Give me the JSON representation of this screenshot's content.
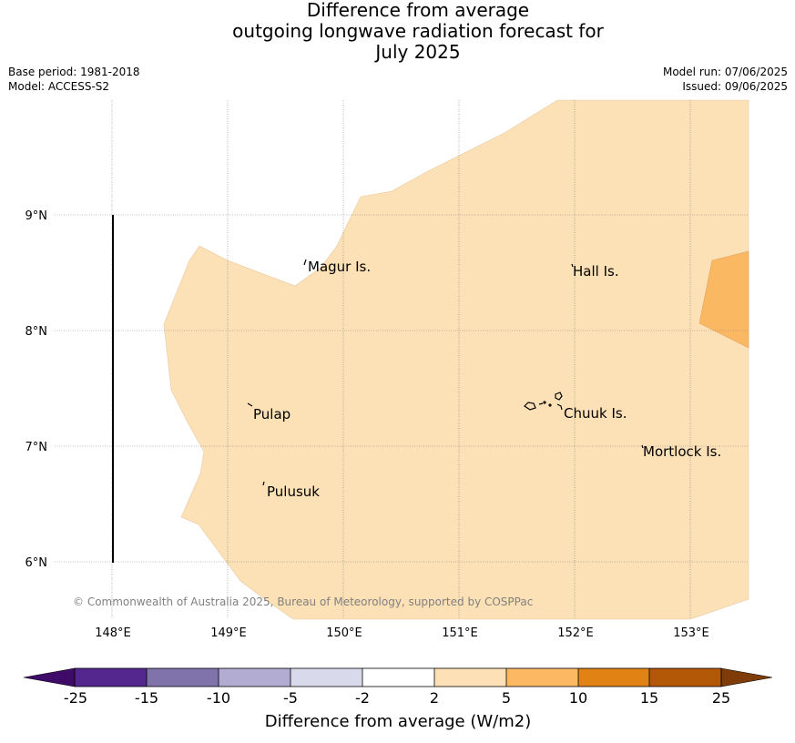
{
  "title": {
    "line1": "Difference from average",
    "line2": "outgoing longwave radiation forecast for",
    "line3": "July 2025"
  },
  "meta": {
    "base_period": "Base period: 1981-2018",
    "model": "Model: ACCESS-S2",
    "model_run": "Model run: 07/06/2025",
    "issued": "Issued: 09/06/2025"
  },
  "map": {
    "lat_ticks": [
      "9°N",
      "8°N",
      "7°N",
      "6°N"
    ],
    "lon_ticks": [
      "148°E",
      "149°E",
      "150°E",
      "151°E",
      "152°E",
      "153°E"
    ],
    "places": [
      {
        "name": "Magur Is."
      },
      {
        "name": "Hall Is."
      },
      {
        "name": "Pulap"
      },
      {
        "name": "Chuuk Is."
      },
      {
        "name": "Mortlock Is."
      },
      {
        "name": "Pulusuk"
      }
    ],
    "copyright": "© Commonwealth of Australia 2025, Bureau of Meteorology, supported by COSPPac",
    "shading_colors": {
      "2 to 5": "#fce0b6",
      "5 to 10": "#fbb863"
    }
  },
  "colorbar": {
    "title": "Difference from average (W/m2)",
    "ticks": [
      "-25",
      "-15",
      "-10",
      "-5",
      "-2",
      "2",
      "5",
      "10",
      "15",
      "25"
    ],
    "colors": [
      "#3e0b69",
      "#54278f",
      "#8073ac",
      "#b2abd2",
      "#d8daeb",
      "#ffffff",
      "#fee0b6",
      "#fdb863",
      "#e08214",
      "#b35806",
      "#7f3b08"
    ]
  }
}
